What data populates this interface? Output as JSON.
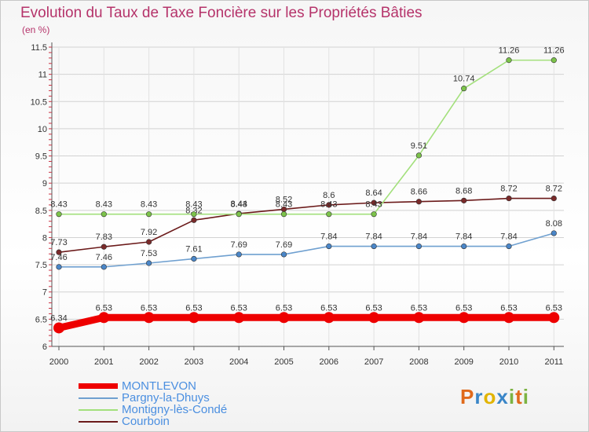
{
  "header": {
    "title": "Evolution du Taux de Taxe Foncière sur les Propriétés Bâties",
    "unit": "(en %)"
  },
  "logo": {
    "letters": [
      "P",
      "r",
      "o",
      "x",
      "i",
      "t",
      "i"
    ],
    "colors": [
      "#e06a1b",
      "#3a86c8",
      "#e2b400",
      "#3a86c8",
      "#7cb342",
      "#e06a1b",
      "#7cb342"
    ]
  },
  "chart_data": {
    "type": "line",
    "title": "Evolution du Taux de Taxe Foncière sur les Propriétés Bâties",
    "ylabel": "(en %)",
    "xlabel": "",
    "ylim": [
      6,
      11.5
    ],
    "y_ticks": [
      "6",
      "6.5",
      "7",
      "7.5",
      "8",
      "8.5",
      "9",
      "9.5",
      "10",
      "10.5",
      "11",
      "11.5"
    ],
    "categories": [
      "2000",
      "2001",
      "2002",
      "2003",
      "2004",
      "2005",
      "2006",
      "2007",
      "2008",
      "2009",
      "2010",
      "2011"
    ],
    "grid": true,
    "legend": "bottom-left",
    "series": [
      {
        "name": "Courboin",
        "color": "#6b1a1a",
        "marker": "#7a2a2a",
        "values": [
          7.73,
          7.83,
          7.92,
          8.32,
          8.44,
          8.52,
          8.6,
          8.64,
          8.66,
          8.68,
          8.72,
          8.72
        ],
        "labels": [
          "7.73",
          "7.83",
          "7.92",
          "8.32",
          "8.44",
          "8.52",
          "8.6",
          "8.64",
          "8.66",
          "8.68",
          "8.72",
          "8.72"
        ]
      },
      {
        "name": "Montigny-lès-Condé",
        "color": "#a3e07c",
        "marker": "#7cc34a",
        "values": [
          8.43,
          8.43,
          8.43,
          8.43,
          8.43,
          8.43,
          8.43,
          8.43,
          9.51,
          10.74,
          11.26,
          11.26
        ],
        "labels": [
          "8.43",
          "8.43",
          "8.43",
          "8.43",
          "8.43",
          "8.43",
          "8.43",
          "8.43",
          "9.51",
          "10.74",
          "11.26",
          "11.26"
        ]
      },
      {
        "name": "Pargny-la-Dhuys",
        "color": "#6fa0d0",
        "marker": "#4a86c8",
        "values": [
          7.46,
          7.46,
          7.53,
          7.61,
          7.69,
          7.69,
          7.84,
          7.84,
          7.84,
          7.84,
          7.84,
          8.08
        ],
        "labels": [
          "7.46",
          "7.46",
          "7.53",
          "7.61",
          "7.69",
          "7.69",
          "7.84",
          "7.84",
          "7.84",
          "7.84",
          "7.84",
          "8.08"
        ]
      },
      {
        "name": "MONTLEVON",
        "color": "#ee0000",
        "marker": "#ee0000",
        "bold": true,
        "values": [
          6.34,
          6.53,
          6.53,
          6.53,
          6.53,
          6.53,
          6.53,
          6.53,
          6.53,
          6.53,
          6.53,
          6.53
        ],
        "labels": [
          "6.34",
          "6.53",
          "6.53",
          "6.53",
          "6.53",
          "6.53",
          "6.53",
          "6.53",
          "6.53",
          "6.53",
          "6.53",
          "6.53"
        ]
      }
    ],
    "legend_entries": [
      "MONTLEVON",
      "Pargny-la-Dhuys",
      "Montigny-lès-Condé",
      "Courboin"
    ]
  }
}
